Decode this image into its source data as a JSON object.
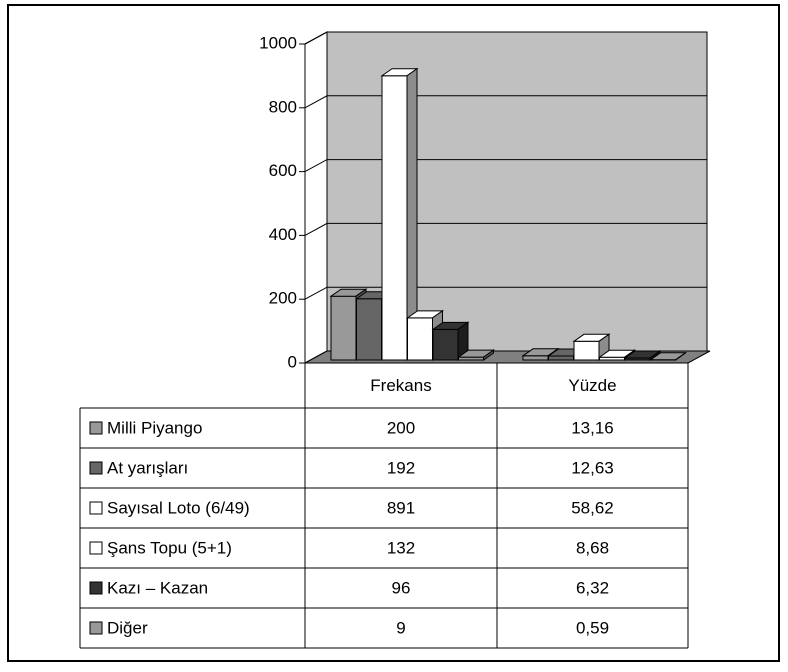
{
  "chart_data": {
    "type": "bar3d",
    "categories": [
      "Frekans",
      "Yüzde"
    ],
    "series": [
      {
        "name": "Milli Piyango",
        "color": "#999999",
        "values": [
          200,
          13.16
        ],
        "value_labels": [
          "200",
          "13,16"
        ]
      },
      {
        "name": "At yarışları",
        "color": "#666666",
        "values": [
          192,
          12.63
        ],
        "value_labels": [
          "192",
          "12,63"
        ]
      },
      {
        "name": "Sayısal Loto (6/49)",
        "color": "#ffffff",
        "values": [
          891,
          58.62
        ],
        "value_labels": [
          "891",
          "58,62"
        ]
      },
      {
        "name": "Şans Topu (5+1)",
        "color": "#ffffff",
        "values": [
          132,
          8.68
        ],
        "value_labels": [
          "132",
          "8,68"
        ]
      },
      {
        "name": "Kazı – Kazan",
        "color": "#333333",
        "values": [
          96,
          6.32
        ],
        "value_labels": [
          "96",
          "6,32"
        ]
      },
      {
        "name": "Diğer",
        "color": "#999999",
        "values": [
          9,
          0.59
        ],
        "value_labels": [
          "9",
          "0,59"
        ]
      }
    ],
    "ylim": [
      0,
      1000
    ],
    "yticks": [
      0,
      200,
      400,
      600,
      800,
      1000
    ],
    "grid": true
  }
}
